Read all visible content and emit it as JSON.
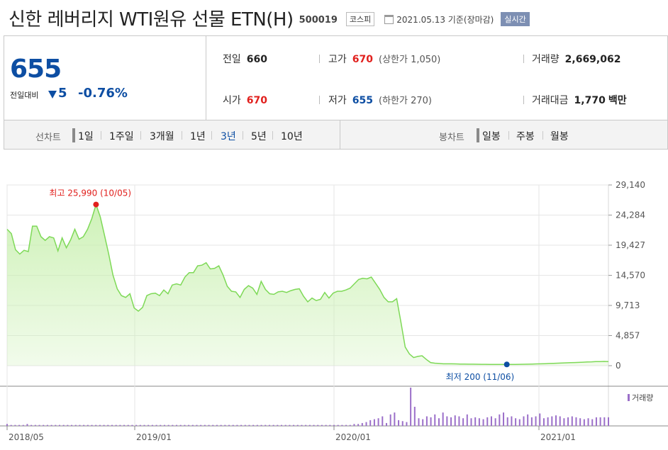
{
  "header": {
    "title": "신한 레버리지 WTI원유 선물 ETN(H)",
    "code": "500019",
    "market": "코스피",
    "date": "2021.05.13 기준(장마감)",
    "realtime": "실시간"
  },
  "quote": {
    "price": "655",
    "change_label": "전일대비",
    "change_value": "5",
    "change_pct": "-0.76%",
    "prev_close_label": "전일",
    "prev_close": "660",
    "high_label": "고가",
    "high": "670",
    "upper_limit": "(상한가 1,050)",
    "volume_label": "거래량",
    "volume": "2,669,062",
    "open_label": "시가",
    "open": "670",
    "low_label": "저가",
    "low": "655",
    "lower_limit": "(하한가 270)",
    "amount_label": "거래대금",
    "amount": "1,770",
    "amount_unit": "백만"
  },
  "periods": {
    "line_label": "선차트",
    "line_items": [
      "1일",
      "1주일",
      "3개월",
      "1년",
      "3년",
      "5년",
      "10년"
    ],
    "active": "3년",
    "candle_label": "봉차트",
    "candle_items": [
      "일봉",
      "주봉",
      "월봉"
    ]
  },
  "colors": {
    "up": "#e1201d",
    "down": "#0d4ea3",
    "line": "#7ed957",
    "fill": "#c9f0b0",
    "volume": "#9b6fc9"
  },
  "chart_data": {
    "type": "area",
    "x_labels": [
      "2018/05",
      "2019/01",
      "2020/01",
      "2021/01"
    ],
    "y_ticks": [
      "29,140",
      "24,284",
      "19,427",
      "14,570",
      "9,713",
      "4,857",
      "0"
    ],
    "ylim": [
      0,
      29140
    ],
    "max_annotation": "최고 25,990 (10/05)",
    "min_annotation": "최저 200 (11/06)",
    "volume_label": "거래량",
    "series": [
      {
        "values": [
          22000,
          21300,
          18700,
          18000,
          18600,
          18400,
          22500,
          22500,
          20800,
          20200,
          20800,
          20600,
          18500,
          20600,
          19000,
          20300,
          22000,
          20400,
          20800,
          22000,
          23700,
          25990,
          24000,
          21000,
          18000,
          14600,
          12400,
          11300,
          11000,
          11600,
          9300,
          8800,
          9400,
          11300,
          11600,
          11700,
          11300,
          12200,
          11600,
          13000,
          13200,
          13000,
          14300,
          15000,
          15000,
          16100,
          16200,
          16600,
          15600,
          15700,
          16100,
          14600,
          12800,
          12000,
          11900,
          11000,
          12300,
          12900,
          12500,
          11500,
          13600,
          12300,
          11600,
          11500,
          11900,
          12000,
          11800,
          12100,
          12300,
          12400,
          11200,
          10300,
          10900,
          10500,
          10700,
          11800,
          10900,
          11700,
          12000,
          12000,
          12200,
          12500,
          13200,
          13900,
          14100,
          14000,
          14300,
          13300,
          12300,
          11000,
          10300,
          10300,
          10800,
          7000,
          3000,
          1900,
          1300,
          1500,
          1600,
          1000,
          500,
          400,
          350,
          300,
          300,
          300,
          280,
          260,
          250,
          240,
          240,
          230,
          220,
          220,
          210,
          210,
          210,
          205,
          200,
          200,
          210,
          220,
          230,
          240,
          260,
          280,
          300,
          320,
          350,
          380,
          400,
          430,
          460,
          480,
          500,
          530,
          560,
          600,
          620,
          650,
          660,
          680,
          655
        ]
      }
    ],
    "volume_series": [
      2,
      1,
      1,
      1,
      1,
      2,
      1,
      1,
      1,
      1,
      1,
      1,
      1,
      1,
      1,
      1,
      1,
      1,
      1,
      1,
      1,
      1,
      1,
      1,
      1,
      1,
      1,
      1,
      1,
      1,
      1,
      1,
      1,
      1,
      1,
      1,
      1,
      1,
      1,
      1,
      1,
      1,
      1,
      1,
      1,
      1,
      1,
      1,
      1,
      1,
      1,
      1,
      1,
      1,
      1,
      1,
      1,
      1,
      1,
      1,
      1,
      1,
      1,
      1,
      1,
      1,
      1,
      1,
      1,
      1,
      1,
      1,
      1,
      1,
      1,
      1,
      1,
      1,
      1,
      1,
      1,
      1,
      1,
      1,
      1,
      1,
      2,
      2,
      3,
      4,
      6,
      7,
      8,
      10,
      3,
      12,
      14,
      6,
      5,
      4,
      40,
      20,
      8,
      7,
      10,
      9,
      12,
      8,
      14,
      10,
      9,
      11,
      10,
      8,
      12,
      8,
      9,
      8,
      7,
      9,
      10,
      8,
      12,
      14,
      9,
      10,
      8,
      7,
      10,
      12,
      9,
      10,
      13,
      8,
      9,
      10,
      11,
      10,
      8,
      9,
      10,
      9,
      8,
      7,
      8,
      7,
      9,
      9,
      9,
      9
    ]
  }
}
